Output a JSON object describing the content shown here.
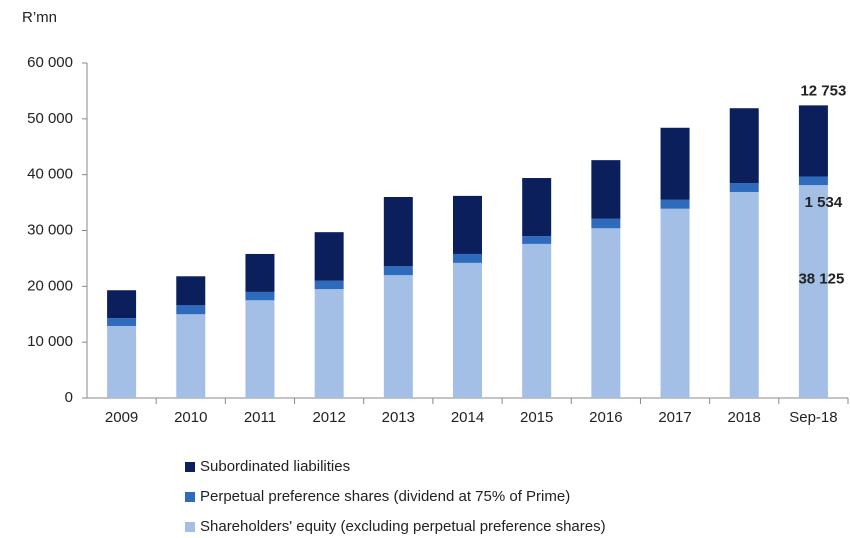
{
  "chart_data": {
    "type": "stacked_bar",
    "y_axis_label": "R’mn",
    "categories": [
      "2009",
      "2010",
      "2011",
      "2012",
      "2013",
      "2014",
      "2015",
      "2016",
      "2017",
      "2018",
      "Sep-18"
    ],
    "series": [
      {
        "name": "Shareholders' equity (excluding perpetual preference shares)",
        "color": "#a3bfe6",
        "values": [
          12900,
          15000,
          17500,
          19500,
          22000,
          24200,
          27600,
          30400,
          33900,
          36900,
          38125
        ],
        "value_labels": [
          null,
          null,
          null,
          null,
          null,
          null,
          null,
          null,
          null,
          null,
          "38 125"
        ]
      },
      {
        "name": "Perpetual preference shares (dividend at 75% of Prime)",
        "color": "#2e6bbd",
        "values": [
          1400,
          1600,
          1500,
          1500,
          1600,
          1600,
          1400,
          1700,
          1600,
          1600,
          1534
        ],
        "value_labels": [
          null,
          null,
          null,
          null,
          null,
          null,
          null,
          null,
          null,
          null,
          "1 534"
        ]
      },
      {
        "name": "Subordinated liabilities",
        "color": "#0a1f5c",
        "values": [
          5000,
          5200,
          6800,
          8700,
          12400,
          10400,
          10400,
          10500,
          12900,
          13400,
          12753
        ],
        "value_labels": [
          null,
          null,
          null,
          null,
          null,
          null,
          null,
          null,
          null,
          null,
          "12 753"
        ]
      }
    ],
    "ylim": [
      0,
      60000
    ],
    "yticks": [
      0,
      {
        "value": 10000,
        "label": "10 000"
      },
      {
        "value": 20000,
        "label": "20 000"
      },
      {
        "value": 30000,
        "label": "30 000"
      },
      {
        "value": 40000,
        "label": "40 000"
      },
      {
        "value": 50000,
        "label": "50 000"
      },
      {
        "value": 60000,
        "label": "60 000"
      }
    ],
    "grid": false,
    "legend": "bottom"
  }
}
